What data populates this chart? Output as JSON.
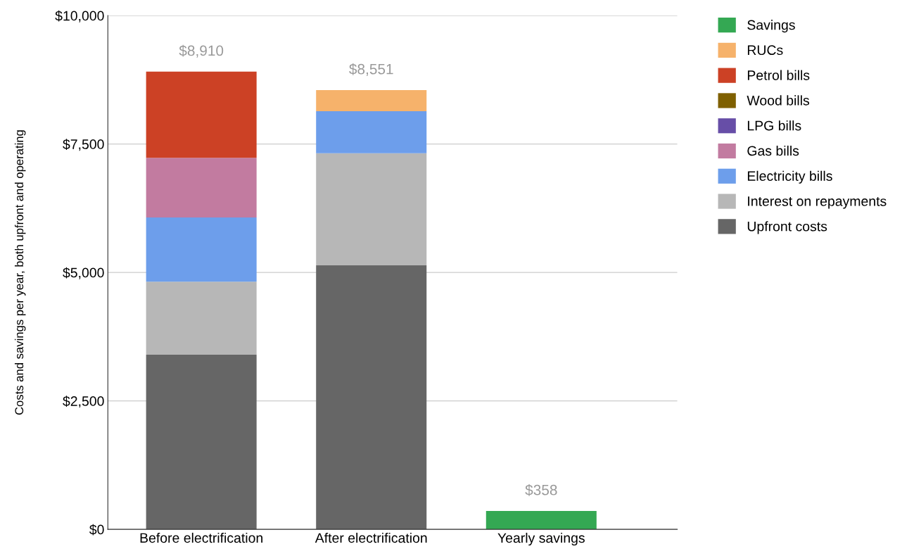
{
  "chart_data": {
    "type": "bar",
    "stacked": true,
    "ylabel": "Costs and savings per year, both upfront and operating",
    "categories": [
      "Before electrification",
      "After electrification",
      "Yearly savings"
    ],
    "series": [
      {
        "name": "Upfront costs",
        "color": "#666666",
        "values": [
          3400,
          5140,
          0
        ]
      },
      {
        "name": "Interest on repayments",
        "color": "#b7b7b7",
        "values": [
          1420,
          2180,
          0
        ]
      },
      {
        "name": "Electricity bills",
        "color": "#6d9eeb",
        "values": [
          1250,
          820,
          0
        ]
      },
      {
        "name": "Gas bills",
        "color": "#c27ba0",
        "values": [
          1160,
          0,
          0
        ]
      },
      {
        "name": "LPG bills",
        "color": "#674ea7",
        "values": [
          0,
          0,
          0
        ]
      },
      {
        "name": "Wood bills",
        "color": "#7f6000",
        "values": [
          0,
          0,
          0
        ]
      },
      {
        "name": "Petrol bills",
        "color": "#cc4125",
        "values": [
          1680,
          0,
          0
        ]
      },
      {
        "name": "RUCs",
        "color": "#f6b26b",
        "values": [
          0,
          411,
          0
        ]
      },
      {
        "name": "Savings",
        "color": "#34a853",
        "values": [
          0,
          0,
          358
        ]
      }
    ],
    "totals": [
      "$8,910",
      "$8,551",
      "$358"
    ],
    "ylim": [
      0,
      10000
    ],
    "yticks": [
      {
        "value": 0,
        "label": "$0"
      },
      {
        "value": 2500,
        "label": "$2,500"
      },
      {
        "value": 5000,
        "label": "$5,000"
      },
      {
        "value": 7500,
        "label": "$7,500"
      },
      {
        "value": 10000,
        "label": "$10,000"
      }
    ],
    "grid": "y",
    "legend": "right"
  }
}
